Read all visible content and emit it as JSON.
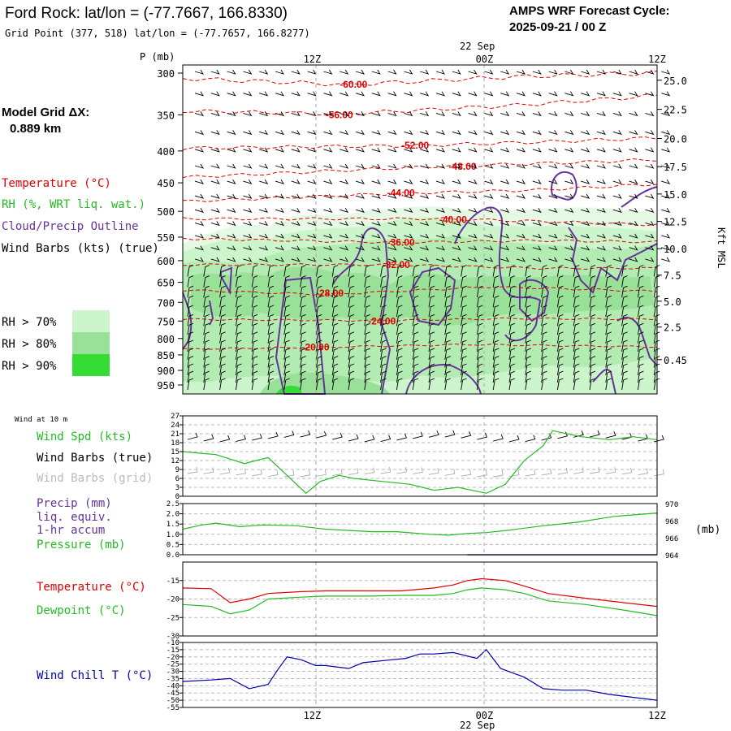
{
  "header": {
    "title": "Ford Rock:  lat/lon = (-77.7667, 166.8330)",
    "grid_point": "Grid Point (377, 518) lat/lon = (-77.7657, 166.8277)",
    "forecast_label": "AMPS WRF Forecast Cycle:",
    "forecast_cycle": "2025-09-21 / 00  Z",
    "model_grid_label": "Model Grid ΔX:",
    "model_grid_value": "0.889 km"
  },
  "legend": {
    "temperature": "Temperature (°C)",
    "rh": "RH (%, WRT liq. wat.)",
    "cloud": "Cloud/Precip Outline",
    "wind": "Wind Barbs (kts) (true)",
    "rh_levels": [
      {
        "label": "RH > 70%",
        "color": "#ccf5cc"
      },
      {
        "label": "RH > 80%",
        "color": "#99e099"
      },
      {
        "label": "RH > 90%",
        "color": "#33dd33"
      }
    ]
  },
  "time_axis": {
    "top_date": "22 Sep",
    "bottom_date": "22 Sep",
    "ticks": [
      {
        "label": "12Z",
        "frac": 0.273
      },
      {
        "label": "00Z",
        "frac": 0.636
      },
      {
        "label": "12Z",
        "frac": 1.0
      }
    ]
  },
  "colors": {
    "temp": "#e00000",
    "rh": "#22bb22",
    "cloud": "#663399",
    "wind": "#000000",
    "grid_wind": "#aaaaaa",
    "chill": "#0000aa"
  },
  "chart_data": [
    {
      "type": "contour",
      "name": "vertical-profile",
      "ylabel": "P (mb)",
      "y2label": "Kft MSL",
      "pressure_ticks": [
        "300",
        "350",
        "400",
        "450",
        "500",
        "550",
        "600",
        "650",
        "700",
        "750",
        "800",
        "850",
        "900",
        "950"
      ],
      "height_ticks": [
        {
          "label": "25.0",
          "p": 308
        },
        {
          "label": "22.5",
          "p": 343
        },
        {
          "label": "20.0",
          "p": 382
        },
        {
          "label": "17.5",
          "p": 424
        },
        {
          "label": "15.0",
          "p": 469
        },
        {
          "label": "12.5",
          "p": 519
        },
        {
          "label": "10.0",
          "p": 574
        },
        {
          "label": "7.5",
          "p": 633
        },
        {
          "label": "5.0",
          "p": 697
        },
        {
          "label": "2.5",
          "p": 767
        },
        {
          "label": "0.45",
          "p": 865
        }
      ],
      "isotherms": [
        {
          "label": "-60.00",
          "pts": [
            [
              0,
              306
            ],
            [
              0.35,
              313
            ],
            [
              0.7,
              304
            ],
            [
              1,
              300
            ]
          ]
        },
        {
          "label": "-56.00",
          "pts": [
            [
              0,
              345
            ],
            [
              0.33,
              349
            ],
            [
              0.7,
              338
            ],
            [
              1,
              326
            ]
          ]
        },
        {
          "label": "-52.00",
          "pts": [
            [
              0,
              396
            ],
            [
              0.5,
              392
            ],
            [
              0.8,
              386
            ],
            [
              1,
              381
            ]
          ]
        },
        {
          "label": "-48.00",
          "pts": [
            [
              0,
              441
            ],
            [
              0.55,
              423
            ],
            [
              0.8,
              418
            ],
            [
              1,
              413
            ]
          ]
        },
        {
          "label": "-44.00",
          "pts": [
            [
              0,
              482
            ],
            [
              0.45,
              468
            ],
            [
              0.75,
              462
            ],
            [
              1,
              452
            ]
          ]
        },
        {
          "label": "-40.00",
          "pts": [
            [
              0,
              514
            ],
            [
              0.55,
              514
            ],
            [
              0.8,
              520
            ],
            [
              1,
              526
            ]
          ]
        },
        {
          "label": "-36.00",
          "pts": [
            [
              0,
              553
            ],
            [
              0.45,
              561
            ],
            [
              0.75,
              557
            ],
            [
              1,
              560
            ]
          ]
        },
        {
          "label": "-32.00",
          "pts": [
            [
              0,
              609
            ],
            [
              0.45,
              609
            ],
            [
              0.75,
              617
            ],
            [
              1,
              617
            ]
          ]
        },
        {
          "label": "-28.00",
          "pts": [
            [
              0,
              669
            ],
            [
              0.3,
              680
            ],
            [
              0.65,
              661
            ],
            [
              1,
              672
            ]
          ]
        },
        {
          "label": "-24.00",
          "pts": [
            [
              0,
              745
            ],
            [
              0.4,
              749
            ],
            [
              0.7,
              743
            ],
            [
              1,
              745
            ]
          ]
        },
        {
          "label": "-20.00",
          "pts": [
            [
              0,
              832
            ],
            [
              0.3,
              826
            ],
            [
              0.6,
              818
            ],
            [
              1,
              825
            ]
          ]
        }
      ],
      "isotherm_labels": [
        {
          "label": "-60.00",
          "x": 0.36,
          "p": 313
        },
        {
          "label": "-56.00",
          "x": 0.33,
          "p": 350
        },
        {
          "label": "-52.00",
          "x": 0.49,
          "p": 392
        },
        {
          "label": "-48.00",
          "x": 0.59,
          "p": 424
        },
        {
          "label": "-44.00",
          "x": 0.46,
          "p": 467
        },
        {
          "label": "-40.00",
          "x": 0.57,
          "p": 516
        },
        {
          "label": "-36.00",
          "x": 0.46,
          "p": 561
        },
        {
          "label": "-32.00",
          "x": 0.45,
          "p": 609
        },
        {
          "label": "-28.00",
          "x": 0.31,
          "p": 677
        },
        {
          "label": "-24.00",
          "x": 0.42,
          "p": 750
        },
        {
          "label": "-20.00",
          "x": 0.28,
          "p": 826
        }
      ]
    },
    {
      "type": "line",
      "name": "wind-10m",
      "title": "Wind at 10 m",
      "series_label": "Wind Spd (kts)",
      "barbs_true": "Wind Barbs (true)",
      "barbs_grid": "Wind Barbs (grid)",
      "ylim": [
        0,
        27
      ],
      "y_ticks": [
        "27",
        "24",
        "21",
        "18",
        "15",
        "12",
        "9",
        "6",
        "3",
        "0"
      ],
      "x": [
        0,
        0.07,
        0.13,
        0.18,
        0.26,
        0.29,
        0.33,
        0.36,
        0.42,
        0.48,
        0.53,
        0.58,
        0.64,
        0.68,
        0.72,
        0.76,
        0.78,
        0.84,
        0.9,
        0.95,
        1.0
      ],
      "values": [
        15,
        14,
        11,
        13,
        1,
        5,
        7,
        6,
        5,
        4,
        2,
        3,
        1,
        4,
        12,
        17,
        22,
        20,
        19,
        20,
        19
      ]
    },
    {
      "type": "line",
      "name": "precip-pressure",
      "series_label_1": "Precip (mm)",
      "series_label_2": "liq. equiv.",
      "series_label_3": "1-hr accum",
      "series_label_4": "Pressure (mb)",
      "unit_right": "(mb)",
      "ylim": [
        0,
        2.5
      ],
      "y_ticks": [
        "2.5",
        "2.0",
        "1.5",
        "1.0",
        "0.5",
        "0.0"
      ],
      "y2_ticks": [
        "970",
        "968",
        "966",
        "964"
      ],
      "pressure_x": [
        0,
        0.04,
        0.07,
        0.12,
        0.17,
        0.24,
        0.3,
        0.4,
        0.45,
        0.52,
        0.56,
        0.6,
        0.64,
        0.69,
        0.76,
        0.83,
        0.91,
        1.0
      ],
      "pressure_values": [
        967.0,
        967.5,
        967.7,
        967.3,
        967.5,
        967.4,
        967.0,
        966.7,
        966.7,
        966.4,
        966.3,
        966.5,
        966.6,
        966.9,
        967.4,
        967.8,
        968.5,
        968.9
      ],
      "precip_x": [
        0.6,
        0.63,
        0.95,
        1.0
      ],
      "precip_values": [
        0,
        0,
        0,
        0
      ]
    },
    {
      "type": "line",
      "name": "temperature-dewpoint",
      "series": [
        {
          "name": "Temperature (°C)",
          "x": [
            0,
            0.06,
            0.1,
            0.14,
            0.18,
            0.25,
            0.3,
            0.4,
            0.46,
            0.53,
            0.57,
            0.6,
            0.63,
            0.68,
            0.72,
            0.77,
            0.85,
            0.93,
            1.0
          ],
          "values": [
            -17,
            -17.2,
            -21,
            -20,
            -18.5,
            -18,
            -17.8,
            -17.8,
            -17.8,
            -17.0,
            -16.2,
            -15,
            -14.5,
            -15,
            -16.5,
            -18.5,
            -19.8,
            -21,
            -22
          ]
        },
        {
          "name": "Dewpoint (°C)",
          "x": [
            0,
            0.06,
            0.1,
            0.14,
            0.18,
            0.25,
            0.3,
            0.4,
            0.46,
            0.53,
            0.57,
            0.6,
            0.63,
            0.68,
            0.72,
            0.77,
            0.85,
            0.93,
            1.0
          ],
          "values": [
            -21.5,
            -22,
            -24,
            -23,
            -20,
            -19.5,
            -19.2,
            -19.2,
            -19.0,
            -19.0,
            -18.5,
            -17.5,
            -17.0,
            -17.5,
            -18.5,
            -20.5,
            -21.5,
            -23,
            -24.5
          ]
        }
      ],
      "ylim": [
        -30,
        -10
      ],
      "y_ticks": [
        "-15",
        "-20",
        "-25",
        "-30"
      ]
    },
    {
      "type": "line",
      "name": "wind-chill",
      "series_label": "Wind Chill T (°C)",
      "ylim": [
        -55,
        -10
      ],
      "y_ticks": [
        "-10",
        "-15",
        "-20",
        "-25",
        "-30",
        "-35",
        "-40",
        "-45",
        "-50",
        "-55"
      ],
      "x": [
        0,
        0.06,
        0.1,
        0.14,
        0.18,
        0.2,
        0.22,
        0.25,
        0.28,
        0.3,
        0.35,
        0.38,
        0.44,
        0.47,
        0.5,
        0.53,
        0.57,
        0.62,
        0.64,
        0.67,
        0.72,
        0.76,
        0.8,
        0.85,
        0.9,
        0.95,
        1.0
      ],
      "values": [
        -37,
        -36,
        -35,
        -42,
        -39,
        -29,
        -20,
        -22,
        -26,
        -26,
        -28,
        -24,
        -22,
        -21,
        -18,
        -18,
        -17,
        -21,
        -15,
        -28,
        -34,
        -42,
        -43,
        -43,
        -46,
        -48,
        -50
      ]
    }
  ]
}
